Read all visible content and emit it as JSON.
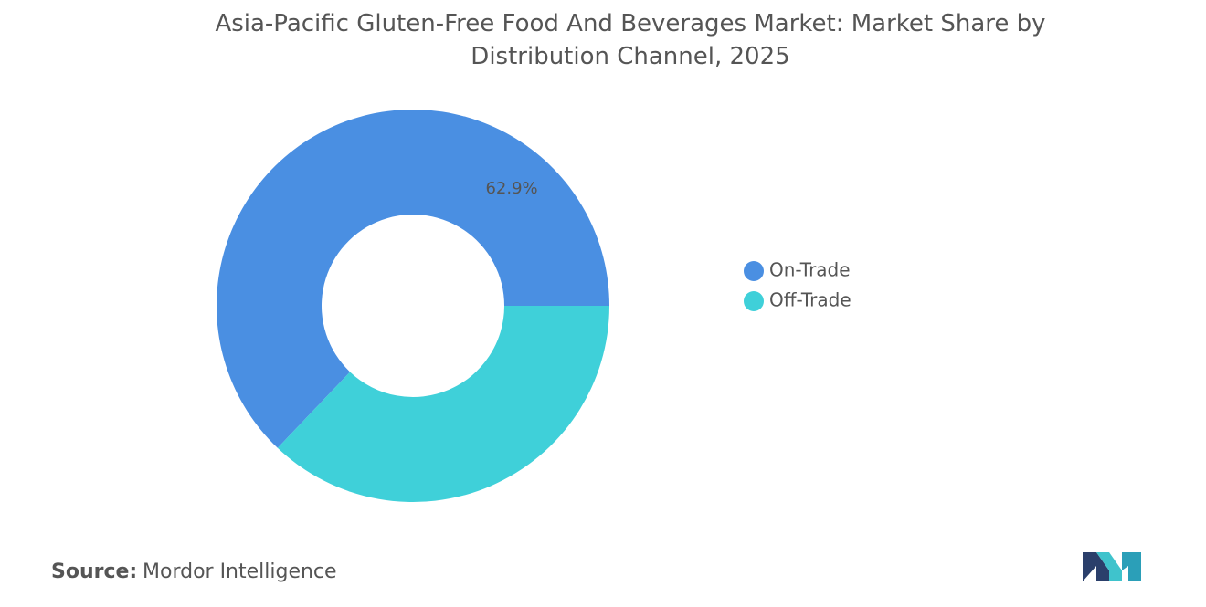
{
  "chart_data": {
    "type": "donut",
    "title": "Asia-Pacific Gluten-Free Food And Beverages Market: Market Share by Distribution Channel, 2025",
    "categories": [
      "On-Trade",
      "Off-Trade"
    ],
    "values": [
      62.9,
      37.1
    ],
    "value_labels": [
      "62.9%",
      null
    ],
    "colors": [
      "#4a8fe2",
      "#3fd0d9"
    ],
    "legend": "right",
    "source_label": "Source:",
    "source": "Mordor Intelligence"
  }
}
